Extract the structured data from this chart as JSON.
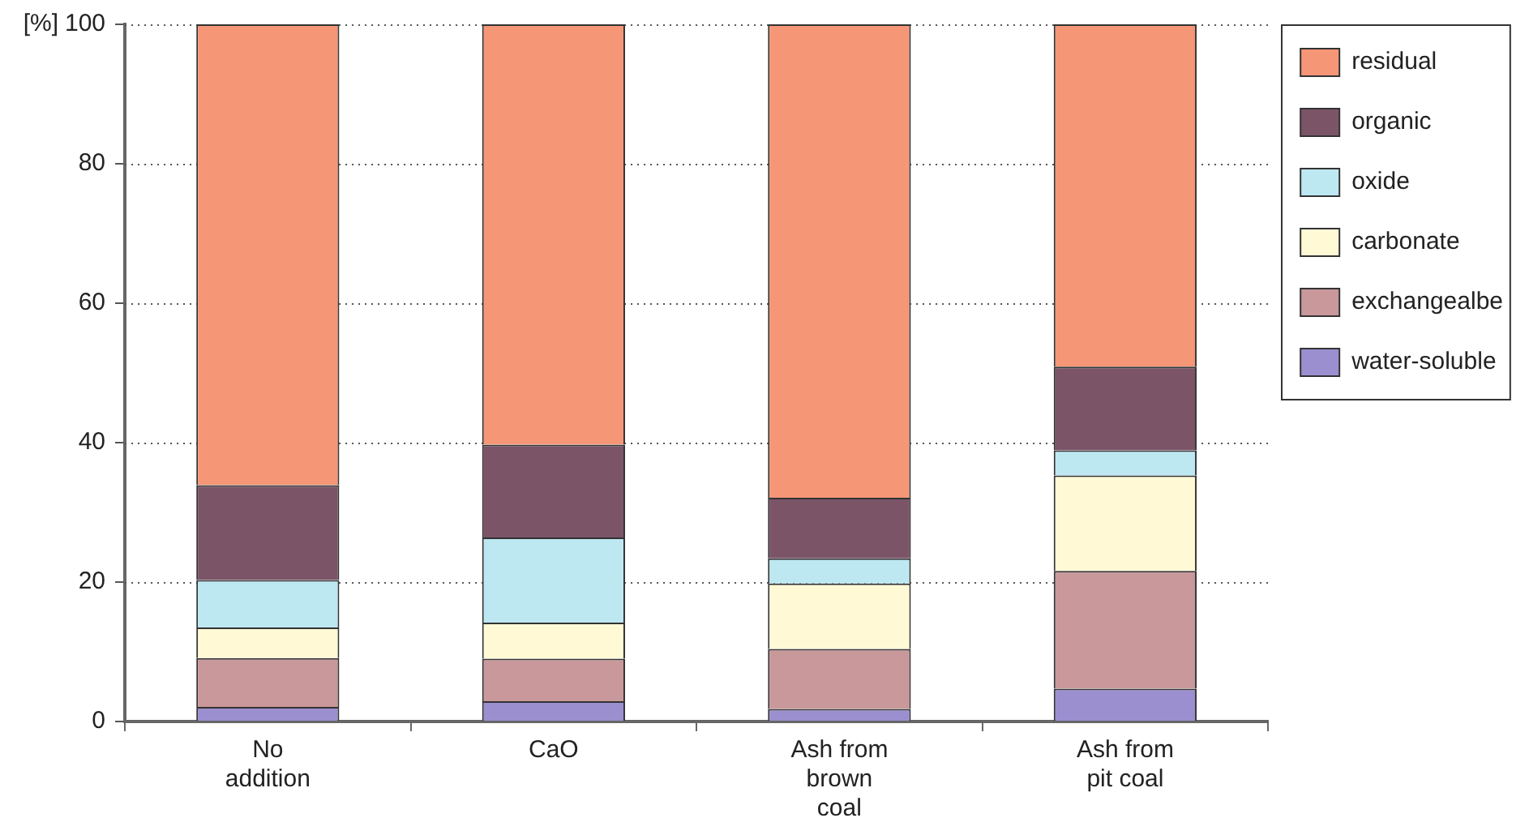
{
  "chart_data": {
    "type": "bar",
    "stacked": true,
    "ylabel": "[%]",
    "categories": [
      "No addition",
      "CaO",
      "Ash from brown coal",
      "Ash from pit coal"
    ],
    "series": [
      {
        "name": "water-soluble",
        "color": "#9b8fd0",
        "values": [
          2.1,
          2.9,
          1.8,
          4.7
        ]
      },
      {
        "name": "exchangealbe",
        "color": "#c9989a",
        "values": [
          7.0,
          6.1,
          8.6,
          16.9
        ]
      },
      {
        "name": "carbonate",
        "color": "#fff9d6",
        "values": [
          4.4,
          5.2,
          9.4,
          13.7
        ]
      },
      {
        "name": "oxide",
        "color": "#bde8f2",
        "values": [
          6.8,
          12.2,
          3.6,
          3.6
        ]
      },
      {
        "name": "organic",
        "color": "#7b5468",
        "values": [
          13.6,
          13.3,
          8.7,
          12.0
        ]
      },
      {
        "name": "residual",
        "color": "#f59677",
        "values": [
          66.1,
          60.3,
          67.9,
          49.1
        ]
      }
    ],
    "ylim": [
      0,
      100
    ],
    "yticks": [
      0,
      20,
      40,
      60,
      80,
      100
    ],
    "grid": "y",
    "legend": "right"
  }
}
